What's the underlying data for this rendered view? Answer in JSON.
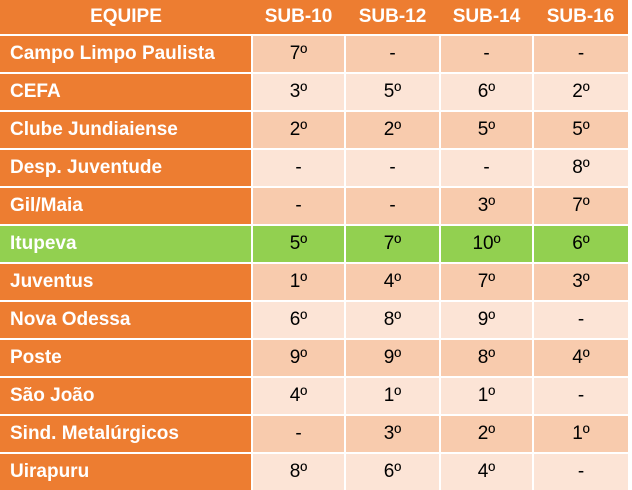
{
  "header": [
    "EQUIPE",
    "SUB-10",
    "SUB-12",
    "SUB-14",
    "SUB-16"
  ],
  "rows": [
    {
      "team": "Campo Limpo Paulista",
      "values": [
        "7º",
        "-",
        "-",
        "-"
      ]
    },
    {
      "team": "CEFA",
      "values": [
        "3º",
        "5º",
        "6º",
        "2º"
      ]
    },
    {
      "team": "Clube Jundiaiense",
      "values": [
        "2º",
        "2º",
        "5º",
        "5º"
      ]
    },
    {
      "team": "Desp. Juventude",
      "values": [
        "-",
        "-",
        "-",
        "8º"
      ]
    },
    {
      "team": "Gil/Maia",
      "values": [
        "-",
        "-",
        "3º",
        "7º"
      ]
    },
    {
      "team": "Itupeva",
      "values": [
        "5º",
        "7º",
        "10º",
        "6º"
      ],
      "highlight": true
    },
    {
      "team": "Juventus",
      "values": [
        "1º",
        "4º",
        "7º",
        "3º"
      ]
    },
    {
      "team": "Nova Odessa",
      "values": [
        "6º",
        "8º",
        "9º",
        "-"
      ]
    },
    {
      "team": "Poste",
      "values": [
        "9º",
        "9º",
        "8º",
        "4º"
      ]
    },
    {
      "team": "São João",
      "values": [
        "4º",
        "1º",
        "1º",
        "-"
      ]
    },
    {
      "team": "Sind. Metalúrgicos",
      "values": [
        "-",
        "3º",
        "2º",
        "1º"
      ]
    },
    {
      "team": "Uirapuru",
      "values": [
        "8º",
        "6º",
        "4º",
        "-"
      ]
    }
  ],
  "colors": {
    "header": "#ED7D31",
    "row_dark": "#F8CBAD",
    "row_light": "#FCE4D6",
    "highlight": "#92D050"
  }
}
